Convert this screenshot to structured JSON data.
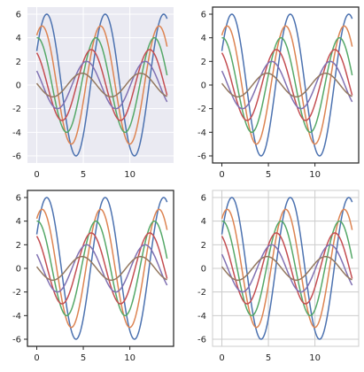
{
  "chart_data": [
    {
      "type": "line",
      "style": "darkgrid",
      "background": "#eaeaf2",
      "grid": true,
      "grid_color": "#ffffff",
      "frame": false,
      "ticks_visible": false,
      "xlim": [
        -1.0,
        14.7
      ],
      "ylim": [
        -6.6,
        6.6
      ],
      "xticks": [
        0,
        5,
        10
      ],
      "yticks": [
        -6,
        -4,
        -2,
        0,
        2,
        4,
        6
      ]
    },
    {
      "type": "line",
      "style": "white",
      "background": "#ffffff",
      "grid": false,
      "frame": true,
      "frame_color": "#262626",
      "ticks_visible": true,
      "xlim": [
        -1.0,
        14.7
      ],
      "ylim": [
        -6.6,
        6.6
      ],
      "xticks": [
        0,
        5,
        10
      ],
      "yticks": [
        -6,
        -4,
        -2,
        0,
        2,
        4,
        6
      ]
    },
    {
      "type": "line",
      "style": "ticks",
      "background": "#ffffff",
      "grid": false,
      "frame": true,
      "frame_color": "#262626",
      "ticks_visible": true,
      "xlim": [
        -1.0,
        14.7
      ],
      "ylim": [
        -6.6,
        6.6
      ],
      "xticks": [
        0,
        5,
        10
      ],
      "yticks": [
        -6,
        -4,
        -2,
        0,
        2,
        4,
        6
      ]
    },
    {
      "type": "line",
      "style": "whitegrid",
      "background": "#ffffff",
      "grid": true,
      "grid_color": "#cccccc",
      "frame": true,
      "frame_color": "#cccccc",
      "ticks_visible": false,
      "xlim": [
        -1.0,
        14.7
      ],
      "ylim": [
        -6.6,
        6.6
      ],
      "xticks": [
        0,
        5,
        10
      ],
      "yticks": [
        -6,
        -4,
        -2,
        0,
        2,
        4,
        6
      ]
    }
  ],
  "series_model": {
    "function": "y = sin(x + i*0.5) * (7 - i), i = 1..6",
    "x_range": [
      0,
      14
    ],
    "series_colors": [
      "#4c72b0",
      "#dd8452",
      "#55a868",
      "#c44e52",
      "#8172b3",
      "#937860"
    ]
  }
}
